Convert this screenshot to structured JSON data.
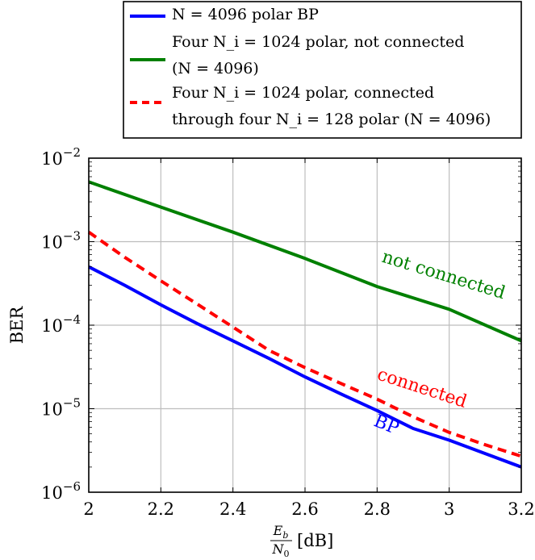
{
  "chart_data": {
    "type": "line",
    "xlabel": "E_b/N_0 [dB]",
    "xlabel_parts": {
      "num": "E",
      "num_sub": "b",
      "den": "N",
      "den_sub": "0",
      "unit": "[dB]"
    },
    "ylabel": "BER",
    "xlim": [
      2,
      3.2
    ],
    "ylim": [
      1e-06,
      0.01
    ],
    "yscale": "log",
    "grid": true,
    "legend_position": "top-right",
    "x_ticks": [
      "2",
      "2.2",
      "2.4",
      "2.6",
      "2.8",
      "3",
      "3.2"
    ],
    "y_ticks": [
      {
        "base": "10",
        "exp": "−2"
      },
      {
        "base": "10",
        "exp": "−3"
      },
      {
        "base": "10",
        "exp": "−4"
      },
      {
        "base": "10",
        "exp": "−5"
      },
      {
        "base": "10",
        "exp": "−6"
      }
    ],
    "series": [
      {
        "id": "bp",
        "color": "#0000ff",
        "dash": "solid",
        "legend": [
          "N = 4096 polar BP"
        ],
        "annotation": "BP",
        "x": [
          2.0,
          2.1,
          2.2,
          2.3,
          2.4,
          2.5,
          2.6,
          2.7,
          2.8,
          2.9,
          3.0,
          3.1,
          3.2
        ],
        "y": [
          0.0005,
          0.0003,
          0.000175,
          0.000105,
          6.5e-05,
          4e-05,
          2.4e-05,
          1.5e-05,
          9.5e-06,
          5.8e-06,
          4.2e-06,
          2.9e-06,
          2e-06
        ]
      },
      {
        "id": "not_connected",
        "color": "#008000",
        "dash": "solid",
        "legend": [
          "Four N_i = 1024 polar, not connected",
          "(N = 4096)"
        ],
        "annotation": "not connected",
        "x": [
          2.0,
          2.2,
          2.4,
          2.6,
          2.8,
          3.0,
          3.2
        ],
        "y": [
          0.0052,
          0.0026,
          0.0013,
          0.00063,
          0.00029,
          0.000155,
          6.5e-05
        ]
      },
      {
        "id": "connected",
        "color": "#ff0000",
        "dash": "dashed",
        "legend": [
          "Four N_i = 1024 polar, connected",
          "through four N_i = 128 polar (N = 4096)"
        ],
        "annotation": "connected",
        "x": [
          2.0,
          2.1,
          2.2,
          2.3,
          2.4,
          2.5,
          2.6,
          2.7,
          2.8,
          2.9,
          3.0,
          3.1,
          3.2
        ],
        "y": [
          0.0013,
          0.00065,
          0.00034,
          0.00018,
          9.5e-05,
          5e-05,
          3.1e-05,
          2e-05,
          1.3e-05,
          8e-06,
          5.2e-06,
          3.7e-06,
          2.7e-06
        ]
      }
    ]
  }
}
